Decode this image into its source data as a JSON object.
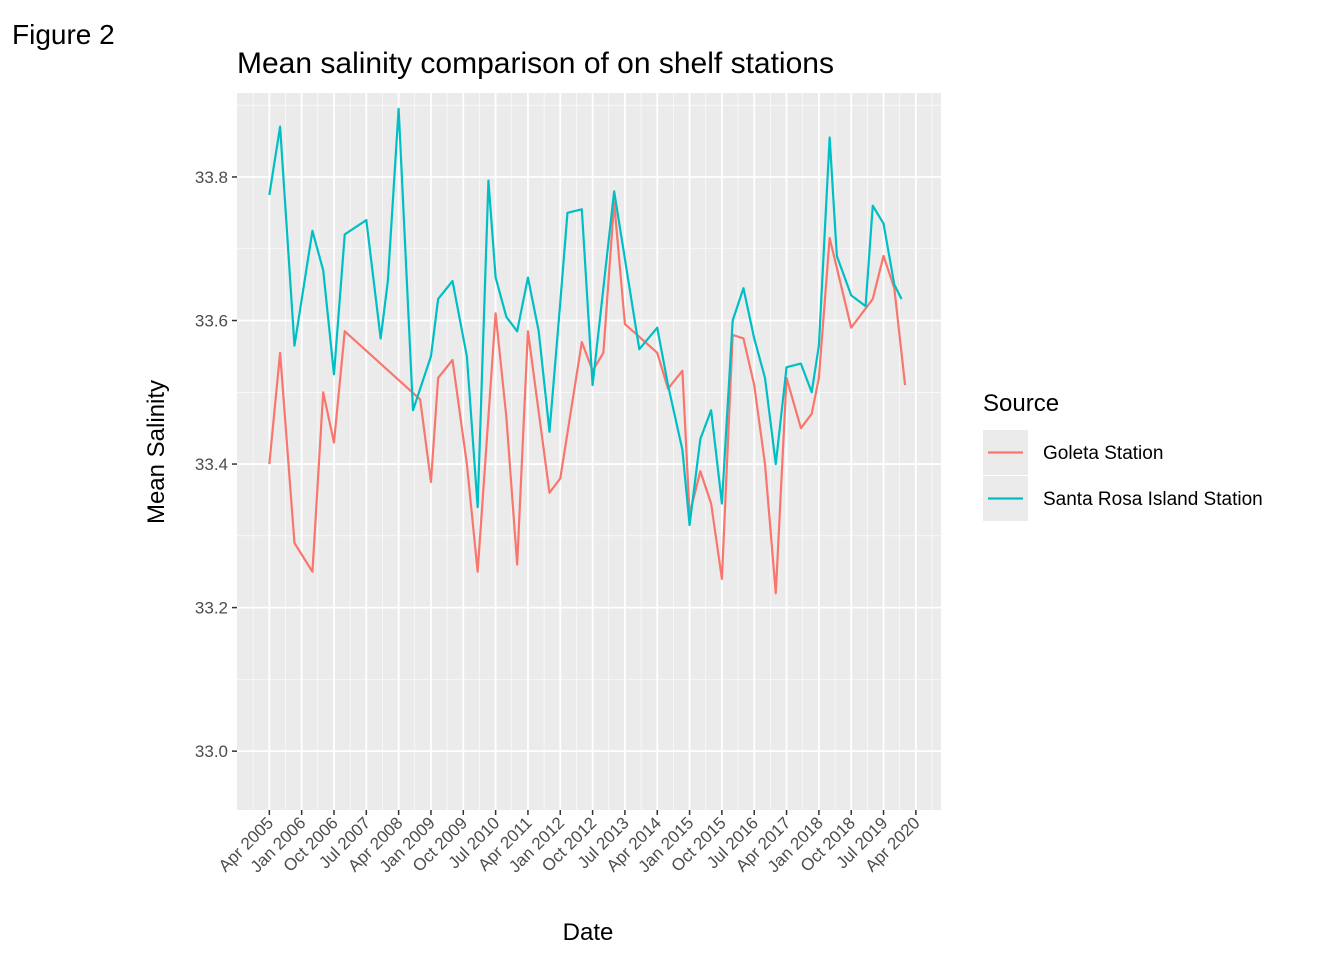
{
  "chart_data": {
    "type": "line",
    "tag": "Figure 2",
    "title": "Mean salinity comparison of on shelf stations",
    "x_label": "Date",
    "y_label": "Mean Salinity",
    "legend_title": "Source",
    "legend_position": "right",
    "grid": true,
    "xlim": [
      "2004-07",
      "2020-11"
    ],
    "xticks": [
      {
        "value": "2005-04",
        "label": "Apr 2005"
      },
      {
        "value": "2006-01",
        "label": "Jan 2006"
      },
      {
        "value": "2006-10",
        "label": "Oct 2006"
      },
      {
        "value": "2007-07",
        "label": "Jul 2007"
      },
      {
        "value": "2008-04",
        "label": "Apr 2008"
      },
      {
        "value": "2009-01",
        "label": "Jan 2009"
      },
      {
        "value": "2009-10",
        "label": "Oct 2009"
      },
      {
        "value": "2010-07",
        "label": "Jul 2010"
      },
      {
        "value": "2011-04",
        "label": "Apr 2011"
      },
      {
        "value": "2012-01",
        "label": "Jan 2012"
      },
      {
        "value": "2012-10",
        "label": "Oct 2012"
      },
      {
        "value": "2013-07",
        "label": "Jul 2013"
      },
      {
        "value": "2014-04",
        "label": "Apr 2014"
      },
      {
        "value": "2015-01",
        "label": "Jan 2015"
      },
      {
        "value": "2015-10",
        "label": "Oct 2015"
      },
      {
        "value": "2016-07",
        "label": "Jul 2016"
      },
      {
        "value": "2017-04",
        "label": "Apr 2017"
      },
      {
        "value": "2018-01",
        "label": "Jan 2018"
      },
      {
        "value": "2018-10",
        "label": "Oct 2018"
      },
      {
        "value": "2019-07",
        "label": "Jul 2019"
      },
      {
        "value": "2020-04",
        "label": "Apr 2020"
      }
    ],
    "ylim": [
      32.918,
      33.917
    ],
    "yticks": [
      {
        "value": 33.0,
        "label": "33.0"
      },
      {
        "value": 33.2,
        "label": "33.2"
      },
      {
        "value": 33.4,
        "label": "33.4"
      },
      {
        "value": 33.6,
        "label": "33.6"
      },
      {
        "value": 33.8,
        "label": "33.8"
      }
    ],
    "series": [
      {
        "name": "Goleta Station",
        "color": "#f8766d",
        "x": [
          "2005-04",
          "2005-07",
          "2005-11",
          "2006-04",
          "2006-07",
          "2006-10",
          "2007-01",
          "2008-10",
          "2009-01",
          "2009-03",
          "2009-07",
          "2009-11",
          "2010-02",
          "2010-07",
          "2010-10",
          "2011-01",
          "2011-04",
          "2011-10",
          "2012-01",
          "2012-07",
          "2012-10",
          "2013-01",
          "2013-04",
          "2013-07",
          "2014-04",
          "2014-07",
          "2014-11",
          "2015-01",
          "2015-04",
          "2015-07",
          "2015-10",
          "2016-01",
          "2016-04",
          "2016-07",
          "2016-10",
          "2017-01",
          "2017-04",
          "2017-08",
          "2017-11",
          "2018-01",
          "2018-04",
          "2018-10",
          "2019-04",
          "2019-07",
          "2019-10",
          "2020-01"
        ],
        "values": [
          33.4,
          33.555,
          33.29,
          33.25,
          33.5,
          33.43,
          33.585,
          33.49,
          33.375,
          33.52,
          33.545,
          33.4,
          33.25,
          33.61,
          33.465,
          33.26,
          33.585,
          33.36,
          33.38,
          33.57,
          33.53,
          33.555,
          33.765,
          33.595,
          33.555,
          33.505,
          33.53,
          33.33,
          33.39,
          33.345,
          33.24,
          33.58,
          33.575,
          33.51,
          33.4,
          33.22,
          33.52,
          33.45,
          33.47,
          33.52,
          33.715,
          33.59,
          33.63,
          33.69,
          33.645,
          33.51
        ]
      },
      {
        "name": "Santa Rosa Island Station",
        "color": "#00bfc4",
        "x": [
          "2005-04",
          "2005-07",
          "2005-11",
          "2006-04",
          "2006-07",
          "2006-10",
          "2007-01",
          "2007-07",
          "2007-11",
          "2008-01",
          "2008-04",
          "2008-08",
          "2009-01",
          "2009-03",
          "2009-07",
          "2009-11",
          "2010-02",
          "2010-05",
          "2010-07",
          "2010-10",
          "2011-01",
          "2011-04",
          "2011-07",
          "2011-10",
          "2012-01",
          "2012-03",
          "2012-07",
          "2012-10",
          "2013-04",
          "2013-11",
          "2014-04",
          "2014-07",
          "2014-11",
          "2015-01",
          "2015-04",
          "2015-07",
          "2015-10",
          "2016-01",
          "2016-04",
          "2016-07",
          "2016-10",
          "2017-01",
          "2017-04",
          "2017-08",
          "2017-11",
          "2018-01",
          "2018-04",
          "2018-06",
          "2018-10",
          "2019-02",
          "2019-04",
          "2019-07",
          "2019-10",
          "2019-12"
        ],
        "values": [
          33.775,
          33.87,
          33.565,
          33.725,
          33.67,
          33.525,
          33.72,
          33.74,
          33.575,
          33.655,
          33.895,
          33.475,
          33.55,
          33.63,
          33.655,
          33.55,
          33.34,
          33.795,
          33.66,
          33.605,
          33.585,
          33.66,
          33.585,
          33.445,
          33.625,
          33.75,
          33.755,
          33.51,
          33.78,
          33.56,
          33.59,
          33.51,
          33.42,
          33.315,
          33.435,
          33.475,
          33.345,
          33.6,
          33.645,
          33.575,
          33.52,
          33.4,
          33.535,
          33.54,
          33.5,
          33.565,
          33.855,
          33.69,
          33.635,
          33.62,
          33.76,
          33.735,
          33.65,
          33.63
        ]
      }
    ]
  }
}
